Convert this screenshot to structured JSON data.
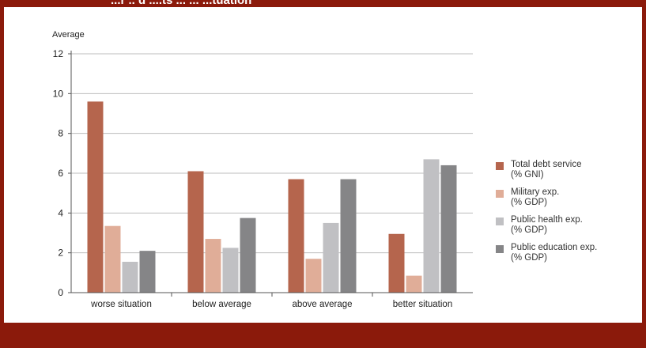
{
  "header": {
    "title_fragment": "...r .. d ....ts ... ... ...tuation"
  },
  "chart_data": {
    "type": "bar",
    "ylabel": "Average",
    "ylim": [
      0,
      12
    ],
    "yticks": [
      0,
      2,
      4,
      6,
      8,
      10,
      12
    ],
    "grid": true,
    "legend_position": "right",
    "categories": [
      "worse situation",
      "below average",
      "above average",
      "better situation"
    ],
    "series": [
      {
        "name": "Total debt service",
        "unit": "(% GNI)",
        "color": "#b5654d",
        "values": [
          9.6,
          6.1,
          5.7,
          2.95
        ]
      },
      {
        "name": "Military exp.",
        "unit": "(% GDP)",
        "color": "#e0ad98",
        "values": [
          3.35,
          2.7,
          1.7,
          0.85
        ]
      },
      {
        "name": "Public health exp.",
        "unit": "(% GDP)",
        "color": "#c0c0c3",
        "values": [
          1.55,
          2.25,
          3.5,
          6.7
        ]
      },
      {
        "name": "Public education exp.",
        "unit": "(% GDP)",
        "color": "#858587",
        "values": [
          2.1,
          3.75,
          5.7,
          6.4
        ]
      }
    ]
  }
}
